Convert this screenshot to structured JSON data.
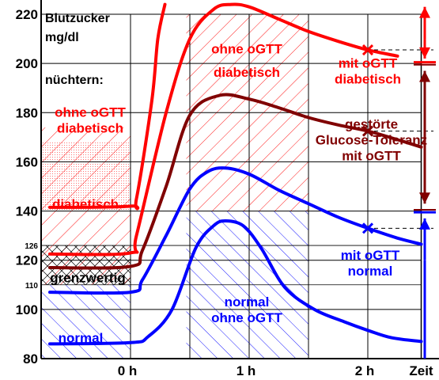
{
  "chart_data": {
    "type": "line",
    "ylabel_lines": [
      "Blutzucker",
      "mg/dl"
    ],
    "fasting_label": "nüchtern:",
    "ylim": [
      80,
      220
    ],
    "xlim": [
      -0.75,
      2.55
    ],
    "y_ticks": [
      80,
      100,
      120,
      140,
      160,
      180,
      200,
      220
    ],
    "y_ticks_minor": [
      110,
      126
    ],
    "x_ticks": [
      {
        "x": 0,
        "label": "0 h"
      },
      {
        "x": 1,
        "label": "1 h"
      },
      {
        "x": 2,
        "label": "2 h"
      },
      {
        "x": 2.45,
        "label": "Zeit"
      }
    ],
    "grid": true,
    "colors": {
      "red": "#ff0000",
      "darkred": "#800000",
      "blue": "#0000ff",
      "black": "#000000"
    },
    "series": [
      {
        "id": "red-upper",
        "color": "#ff0000",
        "x": [
          -0.68,
          0,
          0.05,
          0.18,
          0.23,
          0.29
        ],
        "y": [
          141.5,
          142,
          145,
          185,
          210,
          224
        ]
      },
      {
        "id": "red-lower",
        "color": "#ff0000",
        "x": [
          -0.68,
          0,
          0.05,
          0.3,
          0.5,
          0.7,
          0.85,
          1,
          1.25,
          1.5,
          1.75,
          2,
          2.25
        ],
        "y": [
          122.5,
          123,
          130,
          180,
          210,
          222,
          224,
          223,
          218,
          213,
          209,
          205.5,
          203
        ]
      },
      {
        "id": "darkred",
        "color": "#800000",
        "x": [
          -0.68,
          0,
          0.1,
          0.3,
          0.5,
          0.75,
          1,
          1.25,
          1.5,
          1.75,
          2,
          2.25,
          2.45
        ],
        "y": [
          117,
          117.5,
          124,
          150,
          179,
          187,
          185.5,
          182,
          178,
          175,
          172.5,
          169,
          166
        ]
      },
      {
        "id": "blue-upper",
        "color": "#0000ff",
        "x": [
          -0.68,
          0,
          0.1,
          0.3,
          0.5,
          0.65,
          0.8,
          1,
          1.25,
          1.5,
          1.75,
          2,
          2.25,
          2.45
        ],
        "y": [
          107,
          107,
          112,
          130,
          149,
          156,
          157.5,
          155,
          148.5,
          143,
          137.5,
          133,
          129,
          126.5
        ]
      },
      {
        "id": "blue-lower",
        "color": "#0000ff",
        "x": [
          -0.68,
          0,
          0.15,
          0.35,
          0.55,
          0.7,
          0.8,
          0.95,
          1.1,
          1.3,
          1.55,
          1.8,
          2,
          2.2,
          2.45
        ],
        "y": [
          86,
          86.5,
          89,
          100,
          125,
          134,
          136,
          134,
          125,
          109,
          100,
          95,
          91.5,
          88.5,
          87
        ]
      }
    ],
    "markers": [
      {
        "x": 2,
        "y": 205.5,
        "color": "#ff0000"
      },
      {
        "x": 2,
        "y": 172.5,
        "color": "#800000"
      },
      {
        "x": 2,
        "y": 133,
        "color": "#0000ff"
      }
    ],
    "annotations": [
      {
        "id": "ann-fasting-diabetic",
        "lines": [
          "ohne oGTT",
          "diabetisch"
        ],
        "color": "#ff0000",
        "x": -0.34,
        "y": 177
      },
      {
        "id": "ann-diabetic",
        "lines": [
          "diabetisch"
        ],
        "color": "#ff0000",
        "x": -0.38,
        "y": 143
      },
      {
        "id": "ann-borderline",
        "lines": [
          "grenzwertig"
        ],
        "color": "#000000",
        "x": -0.36,
        "y": 113
      },
      {
        "id": "ann-normal-left",
        "lines": [
          "normal"
        ],
        "color": "#0000ff",
        "x": -0.42,
        "y": 88.5
      },
      {
        "id": "ann-no-ogtt",
        "lines": [
          "ohne oGTT"
        ],
        "color": "#ff0000",
        "x": 0.98,
        "y": 206
      },
      {
        "id": "ann-diabetic-mid",
        "lines": [
          "diabetisch"
        ],
        "color": "#ff0000",
        "x": 0.98,
        "y": 196.5
      },
      {
        "id": "ann-with-ogtt-diabetic",
        "lines": [
          "mit oGTT",
          "diabetisch"
        ],
        "color": "#ff0000",
        "x": 2.0,
        "y": 197
      },
      {
        "id": "ann-impaired",
        "lines": [
          "gestörte",
          "Glucose-Toleranz",
          "mit oGTT"
        ],
        "color": "#800000",
        "x": 2.03,
        "y": 169
      },
      {
        "id": "ann-with-ogtt-normal",
        "lines": [
          "mit oGTT",
          "normal"
        ],
        "color": "#0000ff",
        "x": 2.02,
        "y": 119
      },
      {
        "id": "ann-normal-no-ogtt",
        "lines": [
          "normal",
          "ohne oGTT"
        ],
        "color": "#0000ff",
        "x": 0.98,
        "y": 100
      }
    ]
  }
}
